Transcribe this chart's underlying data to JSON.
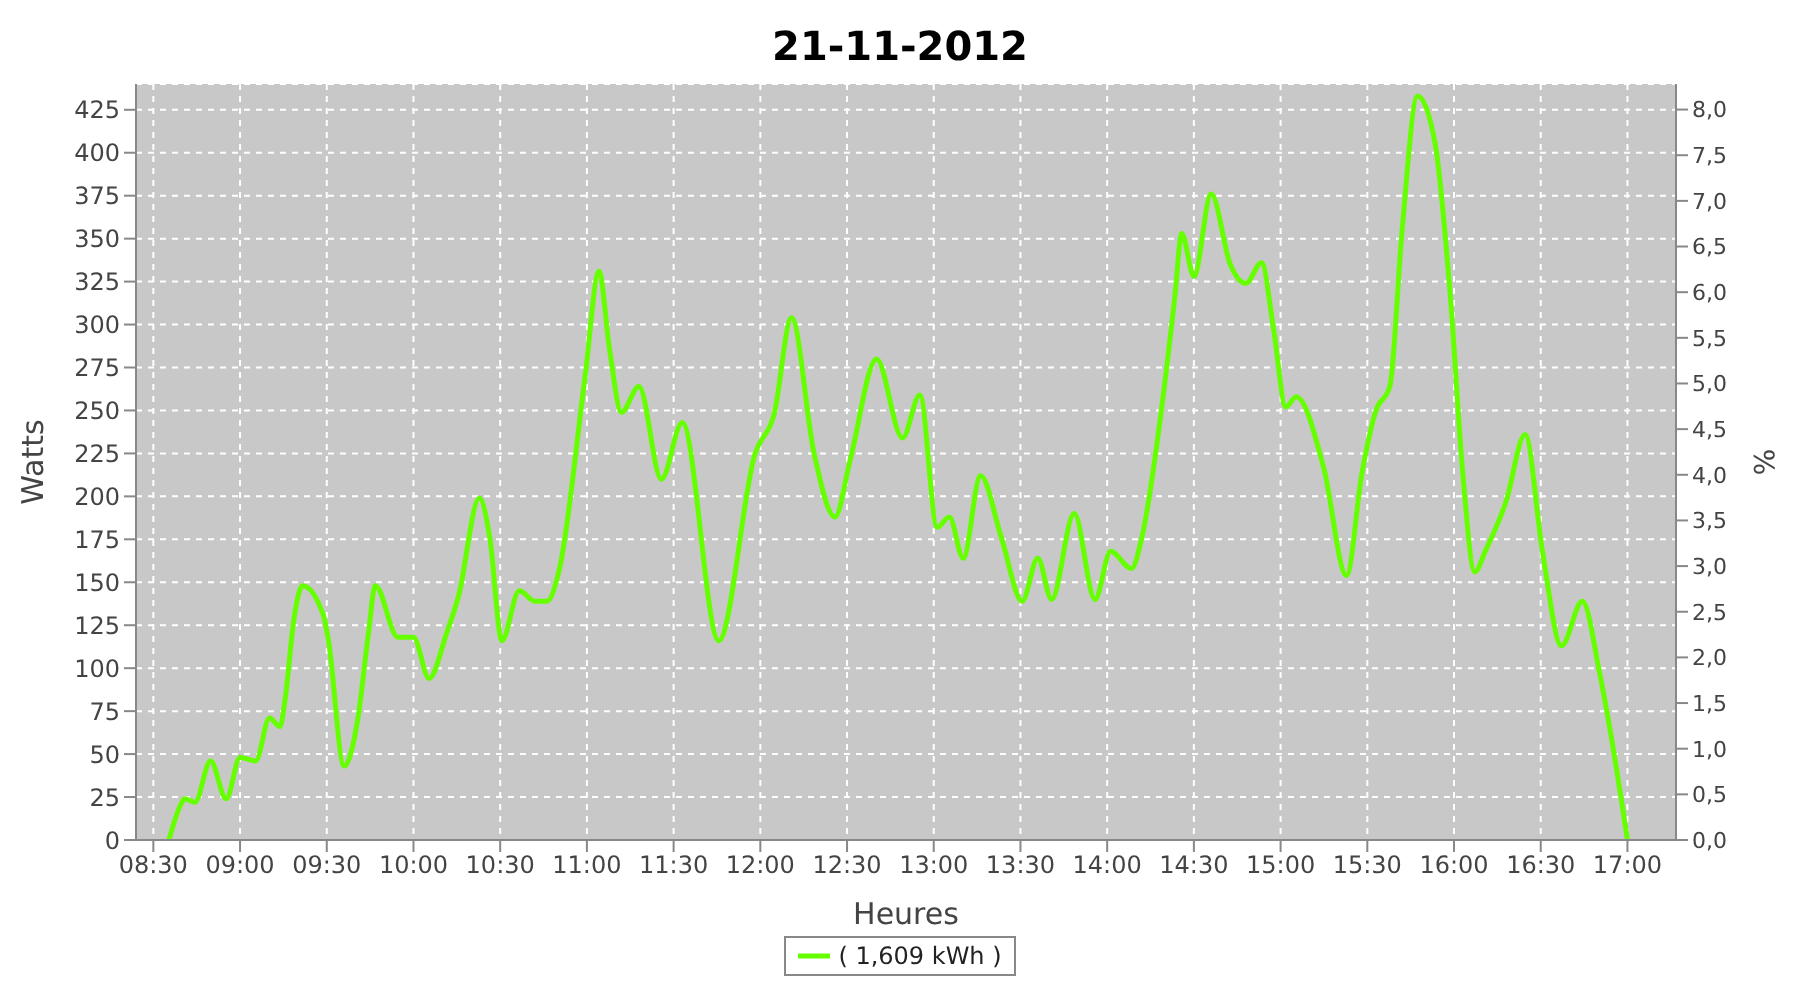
{
  "chart_data": {
    "type": "line",
    "title": "21-11-2012",
    "xlabel": "Heures",
    "ylabel": "Watts",
    "y2label": "%",
    "xlim": [
      8.4,
      17.28
    ],
    "xticks": [
      {
        "value": 8.5,
        "label": "08:30"
      },
      {
        "value": 9,
        "label": "09:00"
      },
      {
        "value": 9.5,
        "label": "09:30"
      },
      {
        "value": 10,
        "label": "10:00"
      },
      {
        "value": 10.5,
        "label": "10:30"
      },
      {
        "value": 11,
        "label": "11:00"
      },
      {
        "value": 11.5,
        "label": "11:30"
      },
      {
        "value": 12,
        "label": "12:00"
      },
      {
        "value": 12.5,
        "label": "12:30"
      },
      {
        "value": 13,
        "label": "13:00"
      },
      {
        "value": 13.5,
        "label": "13:30"
      },
      {
        "value": 14,
        "label": "14:00"
      },
      {
        "value": 14.5,
        "label": "14:30"
      },
      {
        "value": 15,
        "label": "15:00"
      },
      {
        "value": 15.5,
        "label": "15:30"
      },
      {
        "value": 16,
        "label": "16:00"
      },
      {
        "value": 16.5,
        "label": "16:30"
      },
      {
        "value": 17,
        "label": "17:00"
      }
    ],
    "ylim": [
      0,
      440
    ],
    "yticks": [
      0,
      25,
      50,
      75,
      100,
      125,
      150,
      175,
      200,
      225,
      250,
      275,
      300,
      325,
      350,
      375,
      400,
      425
    ],
    "y2lim": [
      0,
      8.28
    ],
    "y2ticks": [
      {
        "value": 0,
        "label": "0,0"
      },
      {
        "value": 0.5,
        "label": "0,5"
      },
      {
        "value": 1,
        "label": "1,0"
      },
      {
        "value": 1.5,
        "label": "1,5"
      },
      {
        "value": 2,
        "label": "2,0"
      },
      {
        "value": 2.5,
        "label": "2,5"
      },
      {
        "value": 3,
        "label": "3,0"
      },
      {
        "value": 3.5,
        "label": "3,5"
      },
      {
        "value": 4,
        "label": "4,0"
      },
      {
        "value": 4.5,
        "label": "4,5"
      },
      {
        "value": 5,
        "label": "5,0"
      },
      {
        "value": 5.5,
        "label": "5,5"
      },
      {
        "value": 6,
        "label": "6,0"
      },
      {
        "value": 6.5,
        "label": "6,5"
      },
      {
        "value": 7,
        "label": "7,0"
      },
      {
        "value": 7.5,
        "label": "7,5"
      },
      {
        "value": 8,
        "label": "8,0"
      }
    ],
    "grid": true,
    "legend": "bottom",
    "marker": "none",
    "line_style": "solid",
    "series": [
      {
        "name": "( 1,609 kWh )",
        "color": "#66ff00",
        "x": [
          8.59,
          8.66,
          8.68,
          8.74,
          8.83,
          8.92,
          9.0,
          9.09,
          9.17,
          9.23,
          9.26,
          9.31,
          9.36,
          9.48,
          9.51,
          9.6,
          9.68,
          9.74,
          9.78,
          9.91,
          10.0,
          10.09,
          10.19,
          10.26,
          10.38,
          10.44,
          10.51,
          10.61,
          10.7,
          10.77,
          10.84,
          10.99,
          11.07,
          11.13,
          11.2,
          11.3,
          11.43,
          11.55,
          11.76,
          11.97,
          12.08,
          12.18,
          12.31,
          12.43,
          12.52,
          12.67,
          12.82,
          12.92,
          13.02,
          13.09,
          13.17,
          13.27,
          13.39,
          13.51,
          13.6,
          13.68,
          13.81,
          13.93,
          14.02,
          14.14,
          14.2,
          14.31,
          14.39,
          14.43,
          14.5,
          14.6,
          14.71,
          14.8,
          14.89,
          14.96,
          15.03,
          15.09,
          15.25,
          15.38,
          15.47,
          15.55,
          15.63,
          15.7,
          15.79,
          15.89,
          15.98,
          16.05,
          16.12,
          16.18,
          16.3,
          16.41,
          16.51,
          16.62,
          16.74,
          16.84,
          16.92,
          17.0
        ],
        "values": [
          0,
          21,
          24,
          22,
          46,
          24,
          48,
          46,
          71,
          66,
          82,
          128,
          148,
          131,
          116,
          43,
          71,
          120,
          148,
          118,
          118,
          94,
          120,
          142,
          199,
          176,
          116,
          145,
          139,
          139,
          157,
          270,
          331,
          286,
          249,
          264,
          210,
          243,
          116,
          225,
          248,
          304,
          225,
          188,
          222,
          280,
          234,
          259,
          182,
          188,
          164,
          212,
          176,
          139,
          164,
          140,
          190,
          140,
          168,
          158,
          176,
          248,
          316,
          353,
          328,
          376,
          335,
          324,
          336,
          297,
          252,
          258,
          216,
          154,
          214,
          250,
          264,
          354,
          433,
          406,
          315,
          214,
          156,
          168,
          197,
          236,
          168,
          113,
          139,
          97,
          52,
          0
        ]
      }
    ]
  }
}
